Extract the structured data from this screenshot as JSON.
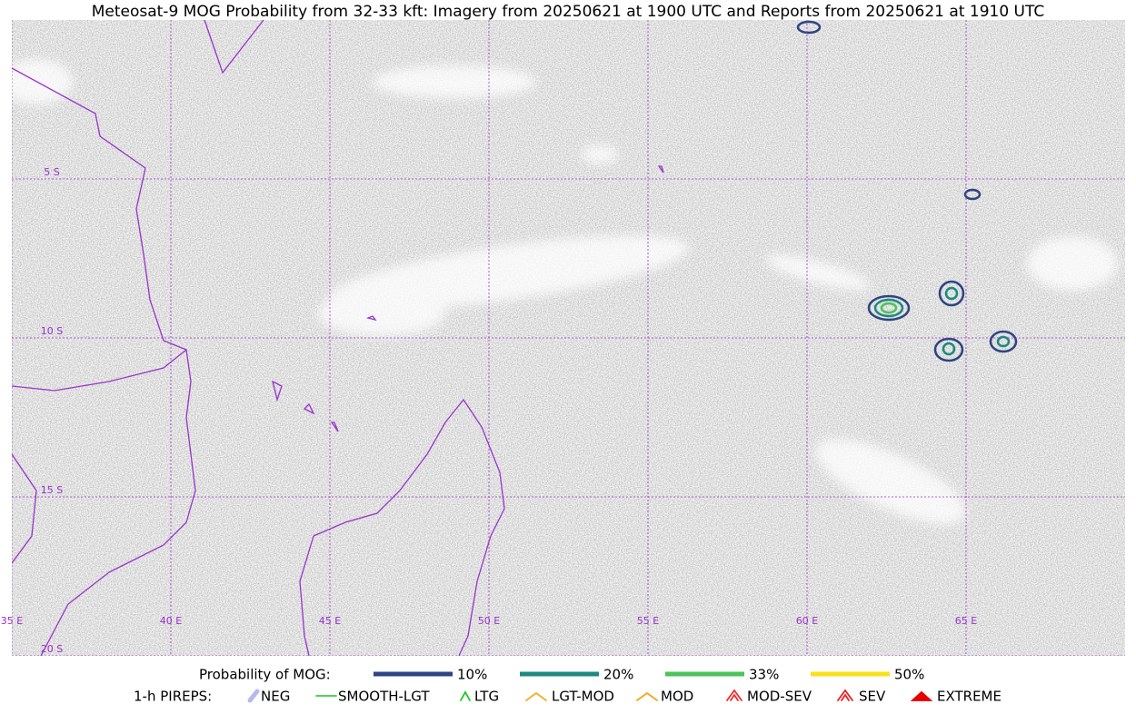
{
  "map": {
    "title": "Meteosat-9 MOG Probability from 32-33 kft: Imagery from 20250621 at 1900 UTC and Reports from 20250621 at 1910 UTC",
    "lon_range": [
      35,
      70
    ],
    "lat_range": [
      0,
      -20
    ],
    "lon_lines": [
      {
        "value": 35,
        "label": "35 E"
      },
      {
        "value": 40,
        "label": "40 E"
      },
      {
        "value": 45,
        "label": "45 E"
      },
      {
        "value": 50,
        "label": "50 E"
      },
      {
        "value": 55,
        "label": "55 E"
      },
      {
        "value": 60,
        "label": "60 E"
      },
      {
        "value": 65,
        "label": "65 E"
      }
    ],
    "lat_lines": [
      {
        "value": -5,
        "label": "5 S"
      },
      {
        "value": -10,
        "label": "10 S"
      },
      {
        "value": -15,
        "label": "15 S"
      },
      {
        "value": -20,
        "label": "20 S"
      }
    ],
    "grid_color": "#9933cc"
  },
  "legend": {
    "probability_title": "Probability of MOG:",
    "probability": [
      {
        "label": "10%",
        "color": "#2e4482"
      },
      {
        "label": "20%",
        "color": "#1b8a80"
      },
      {
        "label": "33%",
        "color": "#4cc35a"
      },
      {
        "label": "50%",
        "color": "#f7e11b"
      }
    ],
    "pireps_title": "1-h PIREPS:",
    "pireps": [
      {
        "label": "NEG",
        "color": "#b8b8f0"
      },
      {
        "label": "SMOOTH-LGT",
        "color": "#3ccc3c"
      },
      {
        "label": "LTG",
        "color": "#1ec81e"
      },
      {
        "label": "LGT-MOD",
        "color": "#f0b020"
      },
      {
        "label": "MOD",
        "color": "#f0a818"
      },
      {
        "label": "MOD-SEV",
        "color": "#e83030"
      },
      {
        "label": "SEV",
        "color": "#e82020"
      },
      {
        "label": "EXTREME",
        "color": "#e80000"
      }
    ]
  }
}
